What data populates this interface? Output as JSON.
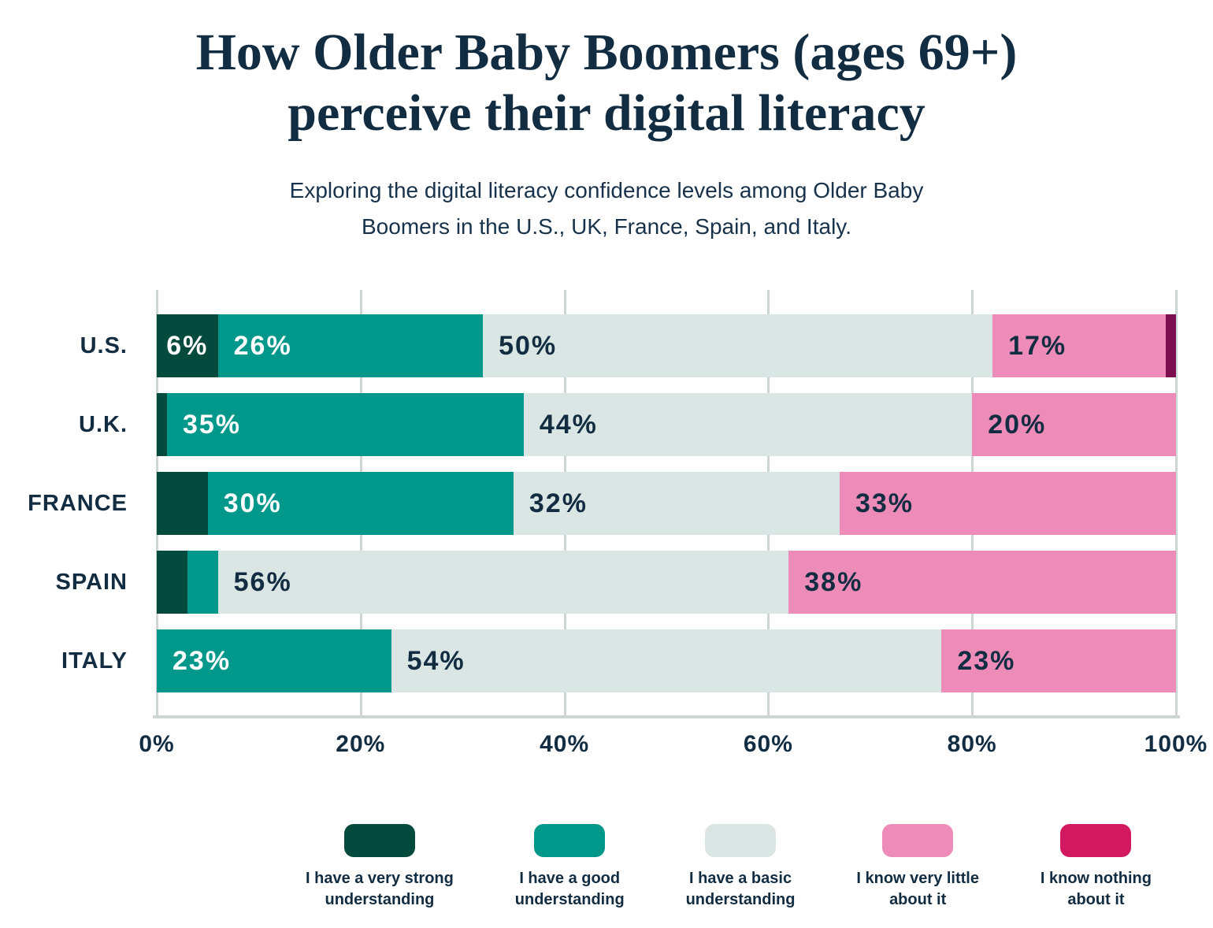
{
  "header": {
    "title_line1": "How Older Baby Boomers (ages 69+)",
    "title_line2": "perceive their digital literacy",
    "subtitle_line1": "Exploring the digital literacy confidence levels among Older Baby",
    "subtitle_line2": "Boomers in the U.S., UK, France, Spain, and Italy."
  },
  "colors": {
    "background": "#ffffff",
    "text_navy": "#122c42",
    "gridline": "#cdd6d3",
    "very_strong": "#044a3d",
    "good": "#00988a",
    "basic": "#d9e6e4",
    "very_little": "#ee8cb9",
    "nothing_bar": "#7c0e50",
    "nothing_legend": "#d2185f"
  },
  "chart_data": {
    "type": "bar",
    "orientation": "horizontal",
    "stacked": true,
    "unit": "%",
    "xlim": [
      0,
      100
    ],
    "grid": true,
    "xticks": [
      "0%",
      "20%",
      "40%",
      "60%",
      "80%",
      "100%"
    ],
    "categories": [
      "U.S.",
      "U.K.",
      "FRANCE",
      "SPAIN",
      "ITALY"
    ],
    "series": [
      {
        "name": "I have a very strong understanding",
        "color": "#044a3d",
        "label_color": "#ffffff",
        "values": [
          6,
          1,
          5,
          3,
          0
        ]
      },
      {
        "name": "I have a good understanding",
        "color": "#00988a",
        "label_color": "#ffffff",
        "values": [
          26,
          35,
          30,
          3,
          23
        ]
      },
      {
        "name": "I have a basic understanding",
        "color": "#d9e6e4",
        "label_color": "#122c42",
        "values": [
          50,
          44,
          32,
          56,
          54
        ]
      },
      {
        "name": "I know very little about it",
        "color": "#ee8cb9",
        "label_color": "#122c42",
        "values": [
          17,
          20,
          33,
          38,
          23
        ]
      },
      {
        "name": "I know nothing about it",
        "color": "#7c0e50",
        "label_color": "#ffffff",
        "values": [
          1,
          0,
          0,
          0,
          0
        ]
      }
    ],
    "data_label_format": "{v}%",
    "data_label_min_value": 6,
    "legend_position": "bottom"
  },
  "legend": {
    "items": [
      {
        "line1": "I have a very strong",
        "line2": "understanding",
        "color": "#044a3d"
      },
      {
        "line1": "I have a good",
        "line2": "understanding",
        "color": "#00988a"
      },
      {
        "line1": "I have a basic",
        "line2": "understanding",
        "color": "#d9e6e4"
      },
      {
        "line1": "I know very little",
        "line2": "about it",
        "color": "#ee8cb9"
      },
      {
        "line1": "I know nothing",
        "line2": "about it",
        "color": "#d2185f"
      }
    ]
  }
}
